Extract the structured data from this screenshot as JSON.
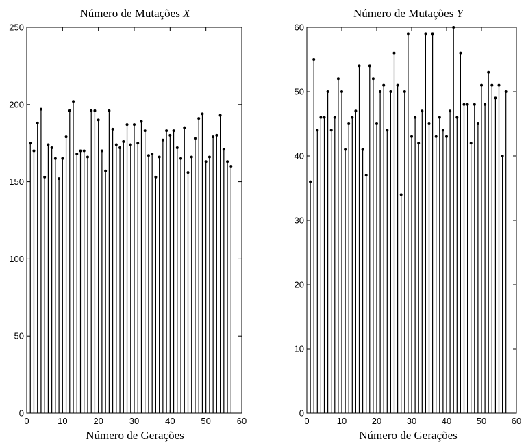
{
  "chart_data": [
    {
      "type": "bar",
      "style": "stem",
      "title": "Número de Mutações",
      "title_var": "X",
      "xlabel": "Número de Gerações",
      "ylabel": "",
      "xlim": [
        0,
        60
      ],
      "ylim": [
        0,
        250
      ],
      "xticks": [
        "0",
        "10",
        "20",
        "30",
        "40",
        "50",
        "60"
      ],
      "yticks": [
        "0",
        "50",
        "100",
        "150",
        "200",
        "250"
      ],
      "grid": false,
      "x": [
        1,
        2,
        3,
        4,
        5,
        6,
        7,
        8,
        9,
        10,
        11,
        12,
        13,
        14,
        15,
        16,
        17,
        18,
        19,
        20,
        21,
        22,
        23,
        24,
        25,
        26,
        27,
        28,
        29,
        30,
        31,
        32,
        33,
        34,
        35,
        36,
        37,
        38,
        39,
        40,
        41,
        42,
        43,
        44,
        45,
        46,
        47,
        48,
        49,
        50,
        51,
        52,
        53,
        54,
        55,
        56,
        57
      ],
      "values": [
        175,
        170,
        188,
        197,
        153,
        174,
        172,
        165,
        152,
        165,
        179,
        196,
        202,
        168,
        170,
        170,
        166,
        196,
        196,
        190,
        170,
        157,
        196,
        184,
        174,
        172,
        176,
        187,
        174,
        187,
        175,
        189,
        183,
        167,
        168,
        153,
        166,
        177,
        183,
        180,
        183,
        172,
        165,
        185,
        156,
        166,
        178,
        191,
        194,
        163,
        166,
        179,
        180,
        193,
        171,
        163,
        160
      ]
    },
    {
      "type": "bar",
      "style": "stem",
      "title": "Número de Mutações",
      "title_var": "Y",
      "xlabel": "Número de Gerações",
      "ylabel": "",
      "xlim": [
        0,
        60
      ],
      "ylim": [
        0,
        60
      ],
      "xticks": [
        "0",
        "10",
        "20",
        "30",
        "40",
        "50",
        "60"
      ],
      "yticks": [
        "0",
        "10",
        "20",
        "30",
        "40",
        "50",
        "60"
      ],
      "grid": false,
      "x": [
        1,
        2,
        3,
        4,
        5,
        6,
        7,
        8,
        9,
        10,
        11,
        12,
        13,
        14,
        15,
        16,
        17,
        18,
        19,
        20,
        21,
        22,
        23,
        24,
        25,
        26,
        27,
        28,
        29,
        30,
        31,
        32,
        33,
        34,
        35,
        36,
        37,
        38,
        39,
        40,
        41,
        42,
        43,
        44,
        45,
        46,
        47,
        48,
        49,
        50,
        51,
        52,
        53,
        54,
        55,
        56,
        57
      ],
      "values": [
        36,
        55,
        44,
        46,
        46,
        50,
        44,
        46,
        52,
        50,
        41,
        45,
        46,
        47,
        54,
        41,
        37,
        54,
        52,
        45,
        50,
        51,
        44,
        50,
        56,
        51,
        34,
        50,
        59,
        43,
        46,
        42,
        47,
        59,
        45,
        59,
        43,
        46,
        44,
        43,
        47,
        60,
        46,
        56,
        48,
        48,
        42,
        48,
        45,
        51,
        48,
        53,
        51,
        49,
        51,
        40,
        50
      ]
    }
  ]
}
